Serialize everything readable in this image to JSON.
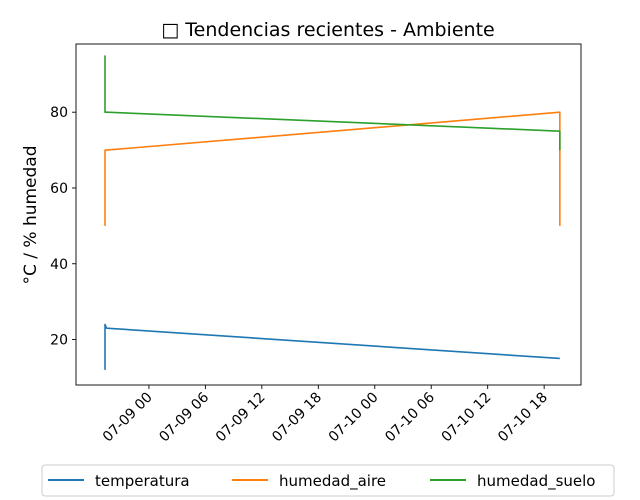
{
  "chart_data": {
    "type": "line",
    "title": "□ Tendencias recientes - Ambiente",
    "xlabel": "",
    "ylabel": "°C / % humedad",
    "x_tick_labels": [
      "07-09 00",
      "07-09 06",
      "07-09 12",
      "07-09 18",
      "07-10 00",
      "07-10 06",
      "07-10 12",
      "07-10 18"
    ],
    "x_ticks": [
      "2025-07-09T00:00",
      "2025-07-09T06:00",
      "2025-07-09T12:00",
      "2025-07-09T18:00",
      "2025-07-10T00:00",
      "2025-07-10T06:00",
      "2025-07-10T12:00",
      "2025-07-10T18:00"
    ],
    "xlim": [
      "2025-07-08T16:15",
      "2025-07-10T21:55"
    ],
    "y_ticks": [
      20,
      40,
      60,
      80
    ],
    "ylim": [
      8,
      98
    ],
    "grid": false,
    "legend_position": "bottom-center",
    "series": [
      {
        "name": "temperatura",
        "color": "#1f77b4",
        "points": [
          [
            "2025-07-08T19:20",
            12
          ],
          [
            "2025-07-08T19:20",
            24
          ],
          [
            "2025-07-08T19:30",
            23
          ],
          [
            "2025-07-10T19:40",
            15
          ]
        ]
      },
      {
        "name": "humedad_aire",
        "color": "#ff7f0e",
        "points": [
          [
            "2025-07-08T19:20",
            50
          ],
          [
            "2025-07-08T19:20",
            70
          ],
          [
            "2025-07-08T19:30",
            70
          ],
          [
            "2025-07-10T19:40",
            80
          ],
          [
            "2025-07-10T19:40",
            50
          ]
        ]
      },
      {
        "name": "humedad_suelo",
        "color": "#2ca02c",
        "points": [
          [
            "2025-07-08T19:20",
            95
          ],
          [
            "2025-07-08T19:20",
            80
          ],
          [
            "2025-07-08T19:30",
            80
          ],
          [
            "2025-07-10T19:40",
            75
          ],
          [
            "2025-07-10T19:40",
            70
          ]
        ]
      }
    ]
  }
}
